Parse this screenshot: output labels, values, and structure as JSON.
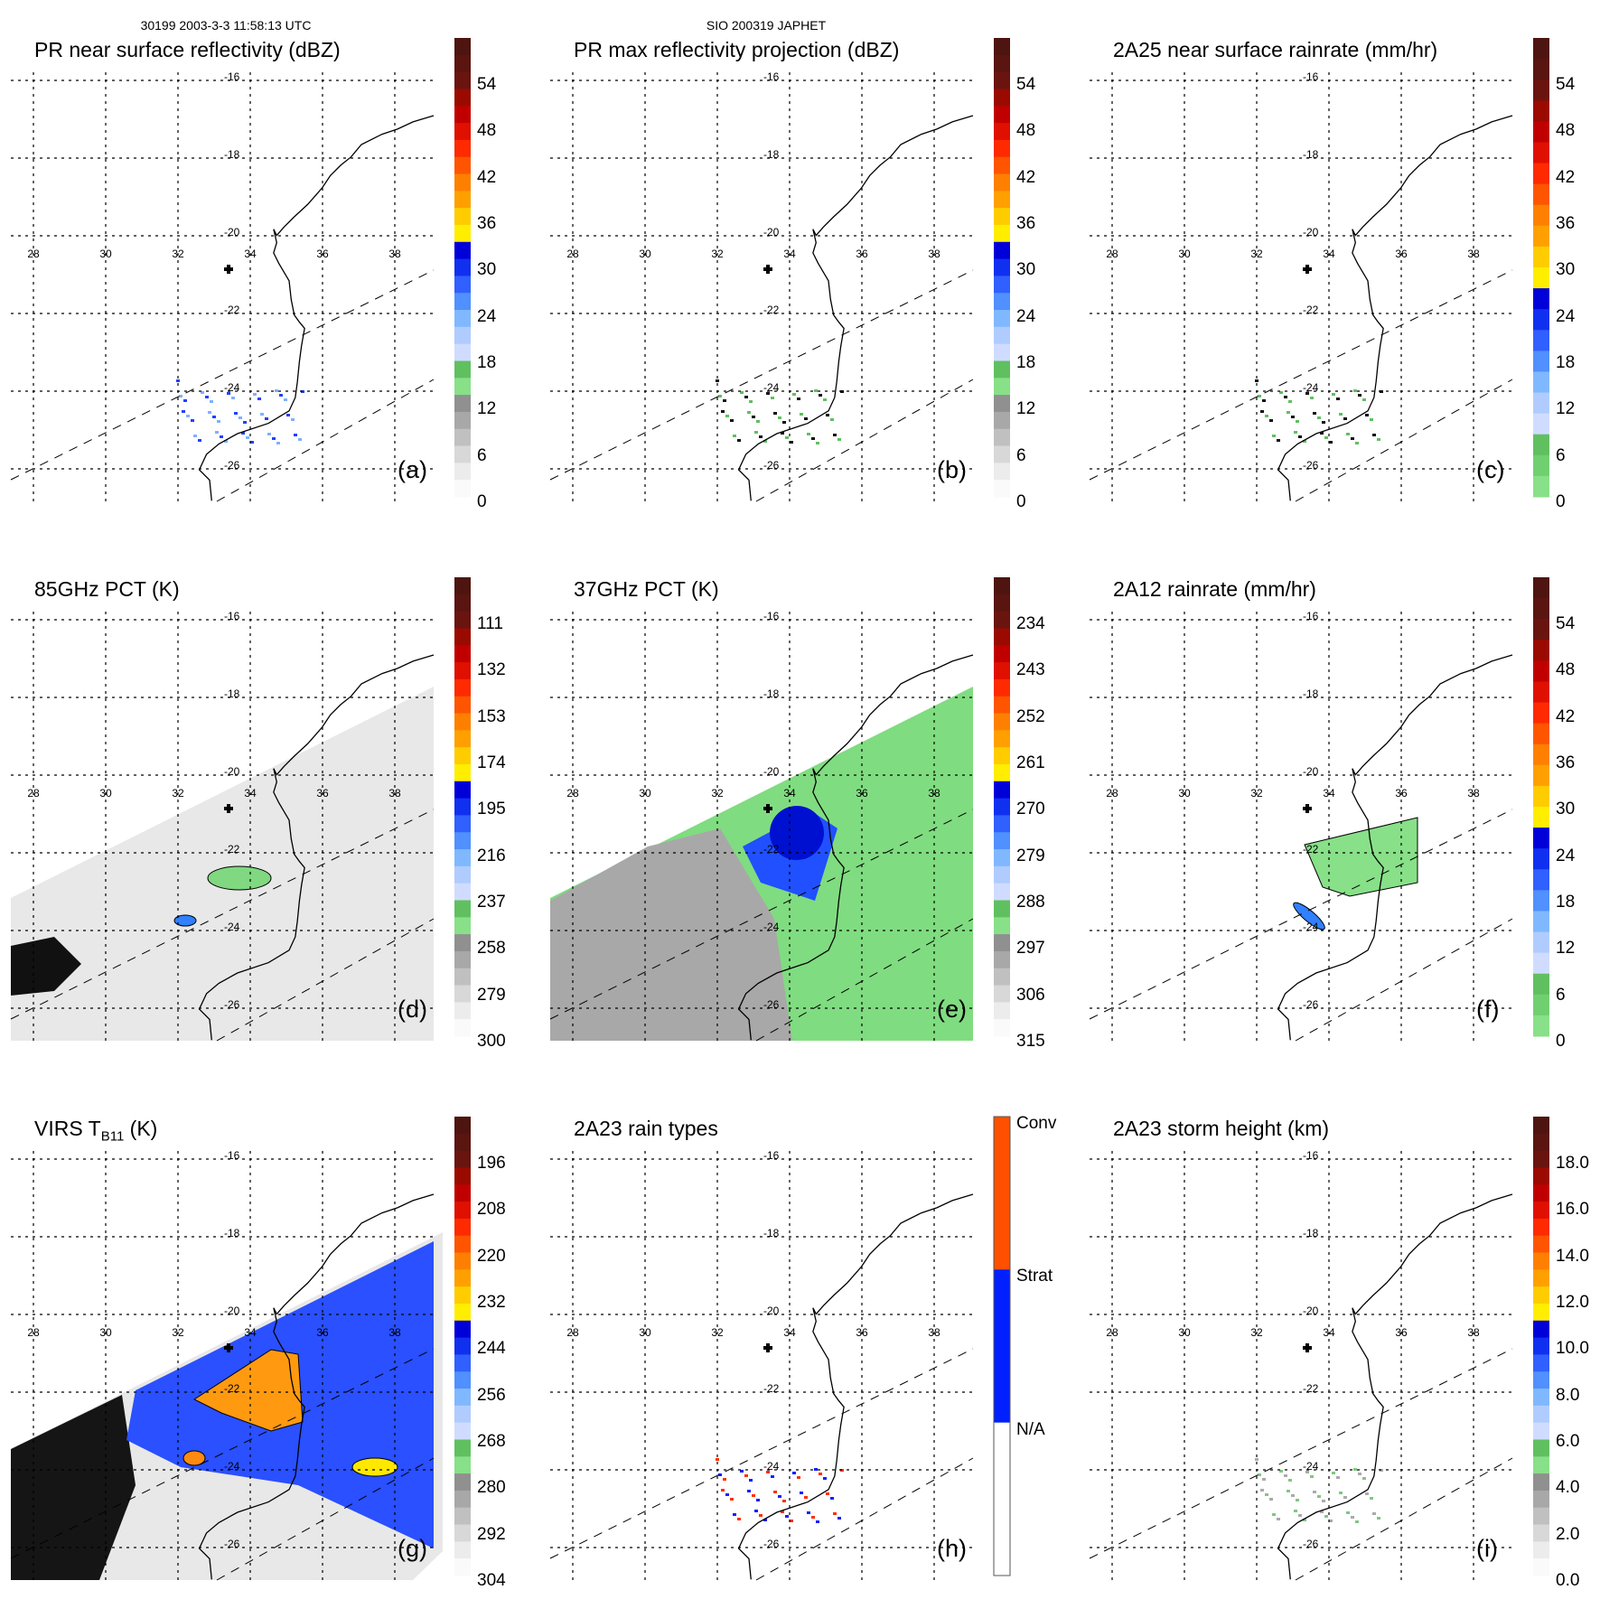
{
  "header": {
    "left": "30199 2003-3-3 11:58:13 UTC",
    "center": "SIO 200319 JAPHET"
  },
  "axes": {
    "lon_labels": [
      "28",
      "30",
      "32",
      "34",
      "36",
      "38"
    ],
    "lat_labels": [
      "-16",
      "-18",
      "-20",
      "-22",
      "-24",
      "-26"
    ]
  },
  "palettes": {
    "dbz": [
      "#4e1510",
      "#5a1510",
      "#6a1410",
      "#9a0a00",
      "#c00000",
      "#e01000",
      "#ff2a00",
      "#ff5500",
      "#ff8000",
      "#ffa000",
      "#ffcc00",
      "#ffee00",
      "#0000d8",
      "#1030f0",
      "#3060ff",
      "#5090ff",
      "#80b8ff",
      "#b0ccff",
      "#d0dcff",
      "#60c060",
      "#88e088",
      "#909090",
      "#a8a8a8",
      "#c0c0c0",
      "#d8d8d8",
      "#ececec",
      "#fafafa"
    ],
    "rain": [
      "#4e1510",
      "#5a1510",
      "#6a1410",
      "#9a0a00",
      "#c00000",
      "#e01000",
      "#ff2a00",
      "#ff5500",
      "#ff8000",
      "#ffa000",
      "#ffcc00",
      "#ffee00",
      "#0000d8",
      "#1030f0",
      "#3060ff",
      "#5090ff",
      "#80b8ff",
      "#b0ccff",
      "#d0dcff",
      "#60c060",
      "#70d070",
      "#88e088"
    ],
    "types": [
      "#ff5000",
      "#ff5000",
      "#0020ff",
      "#0020ff",
      "#ffffff",
      "#ffffff"
    ]
  },
  "panels": [
    {
      "title": "PR near surface reflectivity (dBZ)",
      "label": "(a)",
      "palette": "dbz",
      "ticks": [
        "54",
        "48",
        "42",
        "36",
        "30",
        "24",
        "18",
        "12",
        "6",
        "0"
      ]
    },
    {
      "title": "PR max reflectivity projection (dBZ)",
      "label": "(b)",
      "palette": "dbz",
      "ticks": [
        "54",
        "48",
        "42",
        "36",
        "30",
        "24",
        "18",
        "12",
        "6",
        "0"
      ]
    },
    {
      "title": "2A25 near surface rainrate (mm/hr)",
      "label": "(c)",
      "palette": "rain",
      "ticks": [
        "54",
        "48",
        "42",
        "36",
        "30",
        "24",
        "18",
        "12",
        "6",
        "0"
      ]
    },
    {
      "title": "85GHz PCT (K)",
      "label": "(d)",
      "palette": "dbz",
      "ticks": [
        "111",
        "132",
        "153",
        "174",
        "195",
        "216",
        "237",
        "258",
        "279",
        "300"
      ]
    },
    {
      "title": "37GHz PCT (K)",
      "label": "(e)",
      "palette": "dbz",
      "ticks": [
        "234",
        "243",
        "252",
        "261",
        "270",
        "279",
        "288",
        "297",
        "306",
        "315"
      ]
    },
    {
      "title": "2A12 rainrate (mm/hr)",
      "label": "(f)",
      "palette": "rain",
      "ticks": [
        "54",
        "48",
        "42",
        "36",
        "30",
        "24",
        "18",
        "12",
        "6",
        "0"
      ]
    },
    {
      "title": "VIRS T",
      "title_sub": "B11",
      "title_suffix": " (K)",
      "label": "(g)",
      "palette": "dbz",
      "ticks": [
        "196",
        "208",
        "220",
        "232",
        "244",
        "256",
        "268",
        "280",
        "292",
        "304"
      ]
    },
    {
      "title": "2A23 rain types",
      "label": "(h)",
      "palette": "types",
      "ticks": [
        "Conv",
        "Strat",
        "N/A"
      ]
    },
    {
      "title": "2A23 storm height (km)",
      "label": "(i)",
      "palette": "dbz",
      "ticks": [
        "18.0",
        "16.0",
        "14.0",
        "12.0",
        "10.0",
        "8.0",
        "6.0",
        "4.0",
        "2.0",
        "0.0"
      ]
    }
  ]
}
